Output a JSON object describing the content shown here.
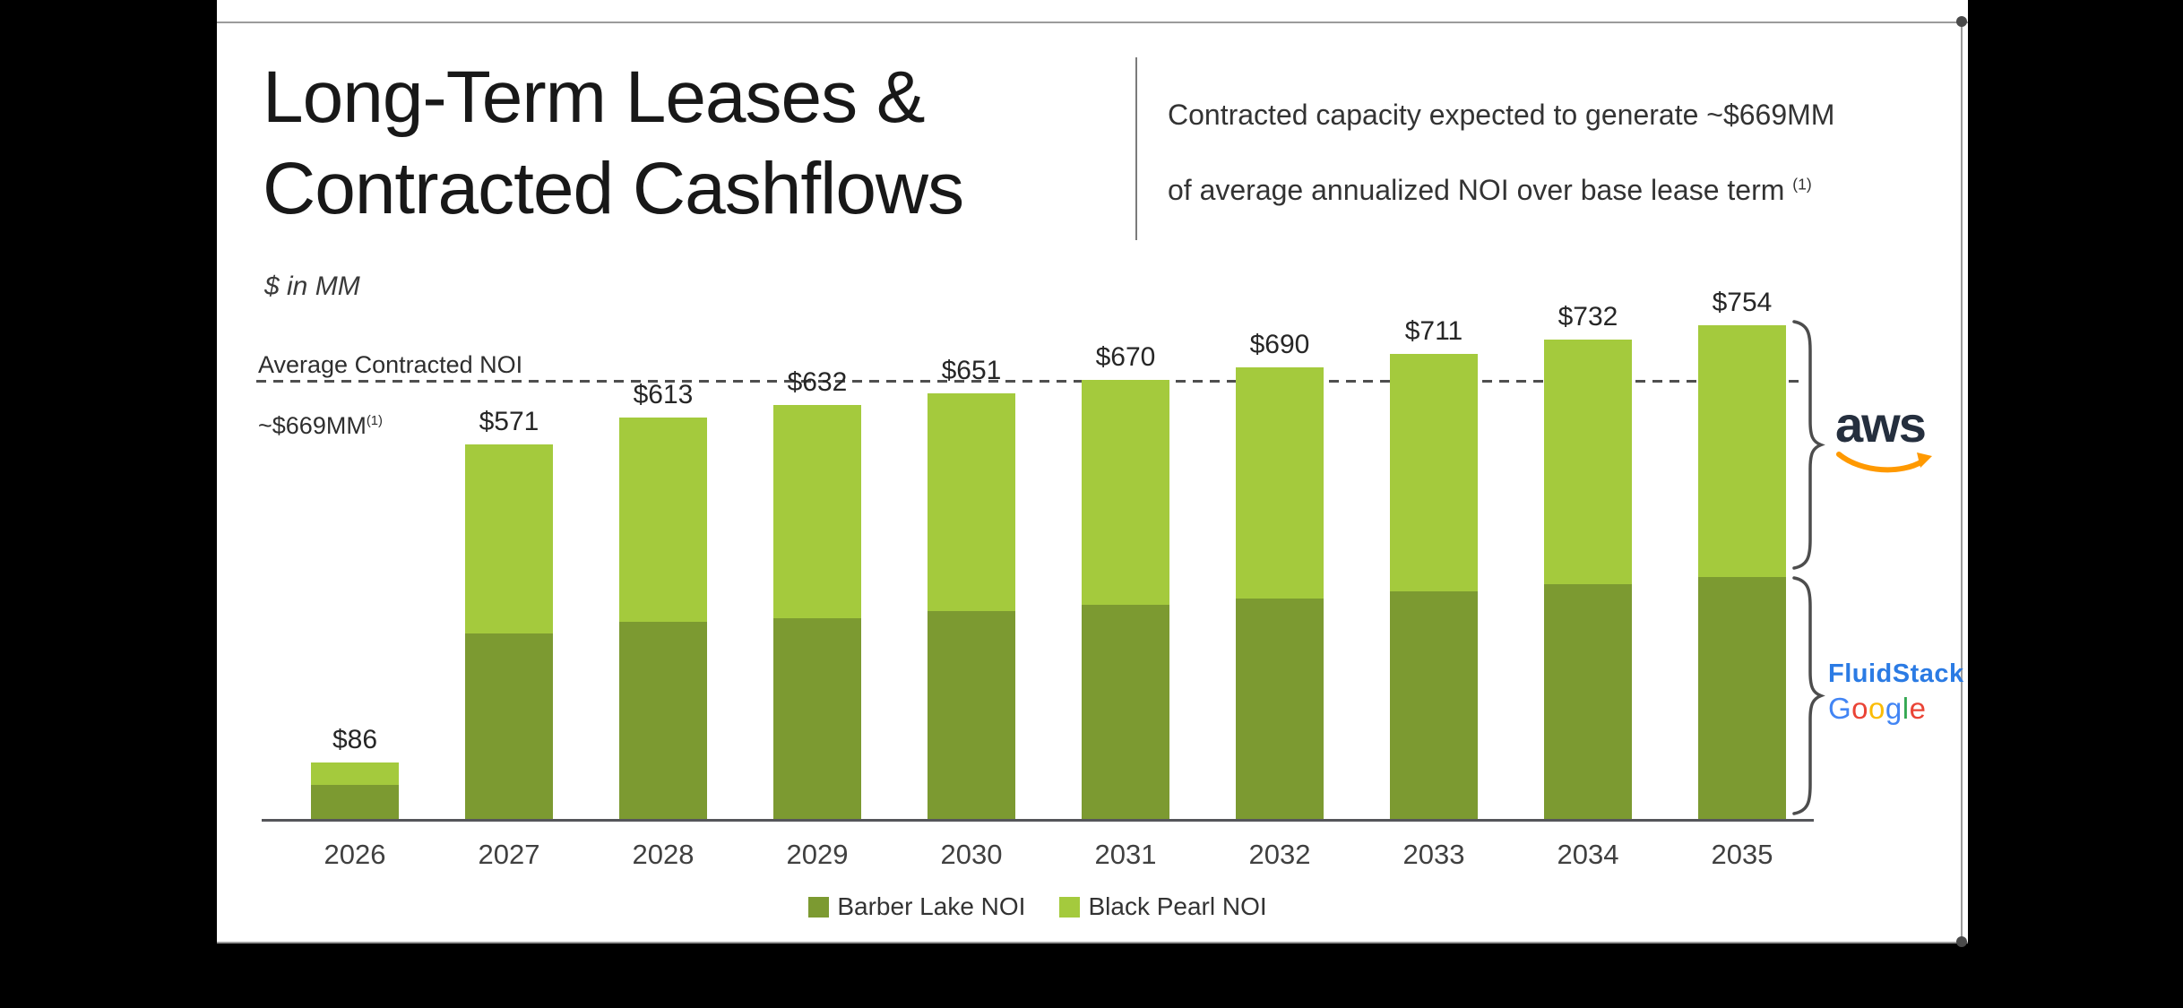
{
  "slide": {
    "title_line1": "Long-Term Leases &",
    "title_line2": "Contracted Cashflows",
    "subtitle_line1": "Contracted capacity expected to generate ~$669MM",
    "subtitle_line2": "of average annualized NOI over base lease term",
    "subtitle_footnote_marker": "(1)",
    "units_note": "$ in MM"
  },
  "chart_data": {
    "type": "bar",
    "stacked": true,
    "categories": [
      "2026",
      "2027",
      "2028",
      "2029",
      "2030",
      "2031",
      "2032",
      "2033",
      "2034",
      "2035"
    ],
    "series": [
      {
        "name": "Barber Lake NOI",
        "color": "#7C9A31",
        "values": [
          52,
          283,
          301,
          306,
          318,
          327,
          337,
          348,
          358,
          370
        ]
      },
      {
        "name": "Black Pearl NOI",
        "color": "#A4CA3D",
        "values": [
          34,
          288,
          312,
          326,
          333,
          343,
          353,
          363,
          374,
          384
        ]
      }
    ],
    "segment_values_estimated": true,
    "totals": [
      86,
      571,
      613,
      632,
      651,
      670,
      690,
      711,
      732,
      754
    ],
    "total_labels": [
      "$86",
      "$571",
      "$613",
      "$632",
      "$651",
      "$670",
      "$690",
      "$711",
      "$732",
      "$754"
    ],
    "reference_line": {
      "value": 669,
      "label": "Average Contracted NOI",
      "value_label": "~$669MM",
      "footnote_marker": "(1)"
    },
    "ylim": [
      0,
      800
    ],
    "grid": false,
    "legend_position": "bottom",
    "right_group_annotations": [
      {
        "label": "aws",
        "applies_to": "Black Pearl NOI"
      },
      {
        "label": "FluidStack Google",
        "applies_to": "Barber Lake NOI"
      }
    ]
  },
  "logos": {
    "aws_text": "aws",
    "fluidstack_text": "FluidStack",
    "fluidstack_color": "#2B7BE4",
    "google_letters": [
      {
        "ch": "G",
        "color": "#4285F4"
      },
      {
        "ch": "o",
        "color": "#EA4335"
      },
      {
        "ch": "o",
        "color": "#FBBC05"
      },
      {
        "ch": "g",
        "color": "#4285F4"
      },
      {
        "ch": "l",
        "color": "#34A853"
      },
      {
        "ch": "e",
        "color": "#EA4335"
      }
    ],
    "aws_smile_color": "#FF9900"
  },
  "colors": {
    "bar_dark": "#7C9A31",
    "bar_light": "#A4CA3D",
    "dashed_line": "#4F4F4F",
    "axis": "#55565A",
    "background": "#000000",
    "slide": "#FFFFFF"
  }
}
